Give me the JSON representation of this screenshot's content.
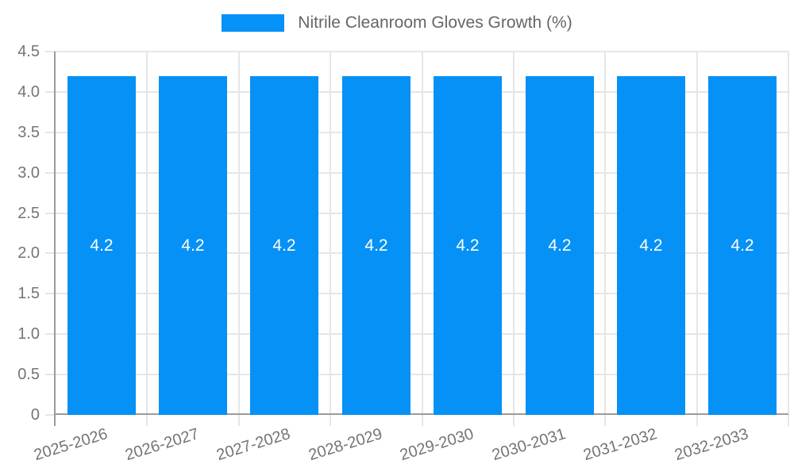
{
  "chart_data": {
    "type": "bar",
    "title": "",
    "legend": {
      "position": "top",
      "label": "Nitrile Cleanroom Gloves Growth (%)"
    },
    "categories": [
      "2025-2026",
      "2026-2027",
      "2027-2028",
      "2028-2029",
      "2029-2030",
      "2030-2031",
      "2031-2032",
      "2032-2033"
    ],
    "series": [
      {
        "name": "Nitrile Cleanroom Gloves Growth (%)",
        "values": [
          4.2,
          4.2,
          4.2,
          4.2,
          4.2,
          4.2,
          4.2,
          4.2
        ],
        "color": "#0591f5"
      }
    ],
    "bar_labels": [
      "4.2",
      "4.2",
      "4.2",
      "4.2",
      "4.2",
      "4.2",
      "4.2",
      "4.2"
    ],
    "xlabel": "",
    "ylabel": "",
    "ylim": [
      0,
      4.5
    ],
    "yticks": [
      0,
      0.5,
      1.0,
      1.5,
      2.0,
      2.5,
      3.0,
      3.5,
      4.0,
      4.5
    ],
    "ytick_labels": [
      "0",
      "0.5",
      "1.0",
      "1.5",
      "2.0",
      "2.5",
      "3.0",
      "3.5",
      "4.0",
      "4.5"
    ],
    "grid": true,
    "colors": {
      "bar": "#0591f5",
      "bar_label": "#ffffff",
      "grid": "#e6e6e6",
      "axis": "#9b9b9b",
      "tick_text": "#757575",
      "legend_text": "#666666",
      "background": "#ffffff"
    }
  }
}
